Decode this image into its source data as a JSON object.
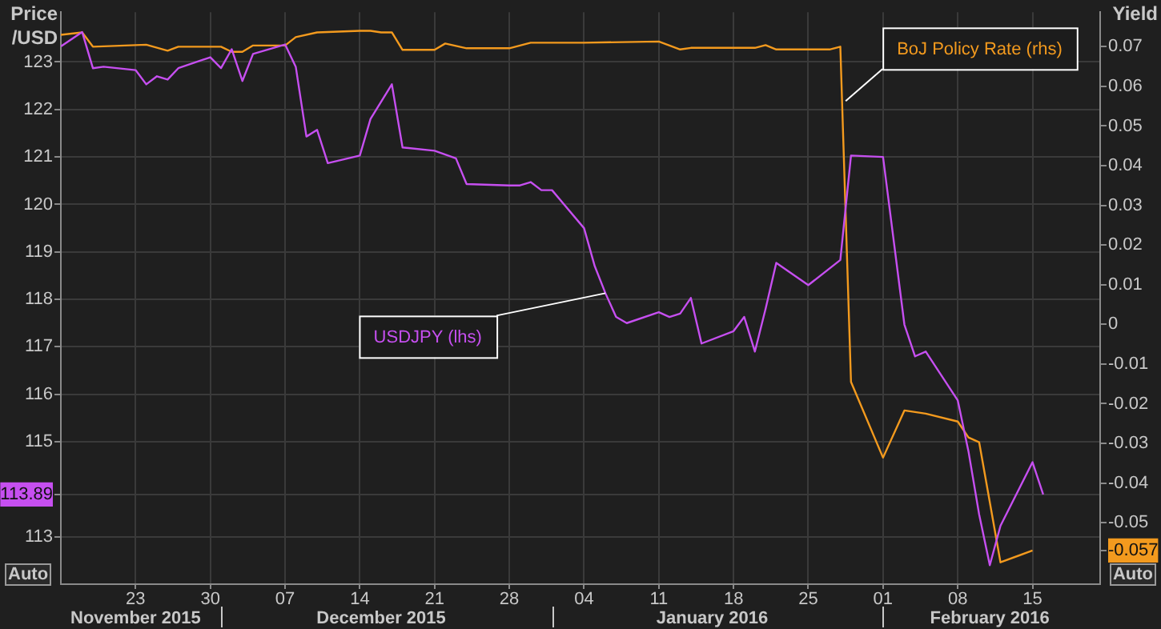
{
  "chart_data": {
    "type": "line",
    "ylabel": "Price /USD",
    "y2label": "Yield",
    "annotations": [
      "Auto",
      "Auto"
    ],
    "xlim": [
      "2015-11-16",
      "2016-02-21T08:00"
    ],
    "xticks": [
      {
        "value": "2015-11-23",
        "label": "23"
      },
      {
        "value": "2015-11-30",
        "label": "30"
      },
      {
        "value": "2015-12-07",
        "label": "07"
      },
      {
        "value": "2015-12-14",
        "label": "14"
      },
      {
        "value": "2015-12-21",
        "label": "21"
      },
      {
        "value": "2015-12-28",
        "label": "28"
      },
      {
        "value": "2016-01-04",
        "label": "04"
      },
      {
        "value": "2016-01-11",
        "label": "11"
      },
      {
        "value": "2016-01-18",
        "label": "18"
      },
      {
        "value": "2016-01-25",
        "label": "25"
      },
      {
        "value": "2016-02-01",
        "label": "01"
      },
      {
        "value": "2016-02-08",
        "label": "08"
      },
      {
        "value": "2016-02-15",
        "label": "15"
      }
    ],
    "x2lim": [
      "2015-11-16",
      "2016-02-21T08:00"
    ],
    "x2ticks": [
      {
        "value": "2015-11-23",
        "label": "November 2015"
      },
      {
        "value": "2015-12-16",
        "label": "December 2015"
      },
      {
        "value": "2016-01-16",
        "label": "January 2016"
      },
      {
        "value": "2016-02-11",
        "label": "February 2016"
      }
    ],
    "ylim": [
      112,
      124.05
    ],
    "yticks": [
      113,
      {
        "value": 113.89,
        "label": "113.89"
      },
      115,
      116,
      117,
      118,
      119,
      120,
      121,
      122,
      123
    ],
    "y2lim": [
      -0.0655,
      0.0787
    ],
    "y2ticks": [
      {
        "value": -0.057,
        "label": "-0.057"
      },
      -0.05,
      -0.04,
      -0.03,
      -0.02,
      -0.01,
      0,
      0.01,
      0.02,
      0.03,
      0.04,
      0.05,
      0.06,
      0.07
    ],
    "grid": true,
    "marker": "none",
    "line_style": "solid",
    "series": [
      {
        "name": "USDJPY (lhs)",
        "color": "#c64ff0",
        "axis": "y",
        "x": [
          "2015-11-16",
          "2015-11-18",
          "2015-11-19",
          "2015-11-20",
          "2015-11-23",
          "2015-11-24",
          "2015-11-25",
          "2015-11-26",
          "2015-11-27",
          "2015-11-30",
          "2015-12-01",
          "2015-12-02",
          "2015-12-03",
          "2015-12-04",
          "2015-12-07",
          "2015-12-08",
          "2015-12-09",
          "2015-12-10",
          "2015-12-11",
          "2015-12-14",
          "2015-12-15",
          "2015-12-17",
          "2015-12-18",
          "2015-12-21",
          "2015-12-23",
          "2015-12-24",
          "2015-12-28",
          "2015-12-29",
          "2015-12-30",
          "2015-12-31",
          "2016-01-01",
          "2016-01-04",
          "2016-01-05",
          "2016-01-06",
          "2016-01-07",
          "2016-01-08",
          "2016-01-11",
          "2016-01-12",
          "2016-01-13",
          "2016-01-14",
          "2016-01-15",
          "2016-01-18",
          "2016-01-19",
          "2016-01-20",
          "2016-01-21",
          "2016-01-22",
          "2016-01-25",
          "2016-01-28",
          "2016-01-29",
          "2016-02-01",
          "2016-02-03",
          "2016-02-04",
          "2016-02-05",
          "2016-02-08",
          "2016-02-09",
          "2016-02-10",
          "2016-02-11",
          "2016-02-12",
          "2016-02-15",
          "2016-02-16"
        ],
        "values": [
          123.33,
          123.63,
          122.87,
          122.9,
          122.83,
          122.53,
          122.7,
          122.63,
          122.87,
          123.1,
          122.87,
          123.27,
          122.6,
          123.17,
          123.37,
          122.9,
          121.43,
          121.57,
          120.87,
          121.03,
          121.8,
          122.53,
          121.2,
          121.13,
          120.97,
          120.43,
          120.4,
          120.4,
          120.47,
          120.3,
          120.3,
          119.5,
          118.7,
          118.13,
          117.63,
          117.5,
          117.73,
          117.63,
          117.7,
          118.03,
          117.07,
          117.33,
          117.63,
          116.9,
          117.8,
          118.77,
          118.3,
          118.83,
          121.03,
          121.0,
          117.47,
          116.8,
          116.9,
          115.87,
          114.8,
          113.47,
          112.4,
          113.23,
          114.57,
          113.89
        ]
      },
      {
        "name": "BoJ Policy Rate (rhs)",
        "color": "#f39a1e",
        "axis": "y2",
        "x": [
          "2015-11-16",
          "2015-11-18",
          "2015-11-19",
          "2015-11-24",
          "2015-11-26",
          "2015-11-27",
          "2015-12-01",
          "2015-12-02",
          "2015-12-03",
          "2015-12-04",
          "2015-12-07",
          "2015-12-08",
          "2015-12-10",
          "2015-12-14",
          "2015-12-15",
          "2015-12-16",
          "2015-12-17",
          "2015-12-18",
          "2015-12-21",
          "2015-12-22",
          "2015-12-24",
          "2015-12-28",
          "2015-12-30",
          "2016-01-04",
          "2016-01-11",
          "2016-01-13",
          "2016-01-14",
          "2016-01-20",
          "2016-01-21",
          "2016-01-22",
          "2016-01-27",
          "2016-01-28",
          "2016-01-29",
          "2016-02-01",
          "2016-02-03",
          "2016-02-05",
          "2016-02-08",
          "2016-02-09",
          "2016-02-10",
          "2016-02-12",
          "2016-02-15"
        ],
        "values": [
          0.073,
          0.0736,
          0.07,
          0.0705,
          0.069,
          0.07,
          0.07,
          0.0687,
          0.0687,
          0.0703,
          0.0703,
          0.0724,
          0.0736,
          0.074,
          0.074,
          0.0736,
          0.0736,
          0.0692,
          0.0692,
          0.0708,
          0.0696,
          0.0696,
          0.071,
          0.071,
          0.0713,
          0.0693,
          0.0697,
          0.0697,
          0.0704,
          0.0693,
          0.0693,
          0.07,
          -0.0145,
          -0.0336,
          -0.0217,
          -0.0225,
          -0.0245,
          -0.0285,
          -0.0297,
          -0.06,
          -0.057
        ]
      }
    ]
  }
}
